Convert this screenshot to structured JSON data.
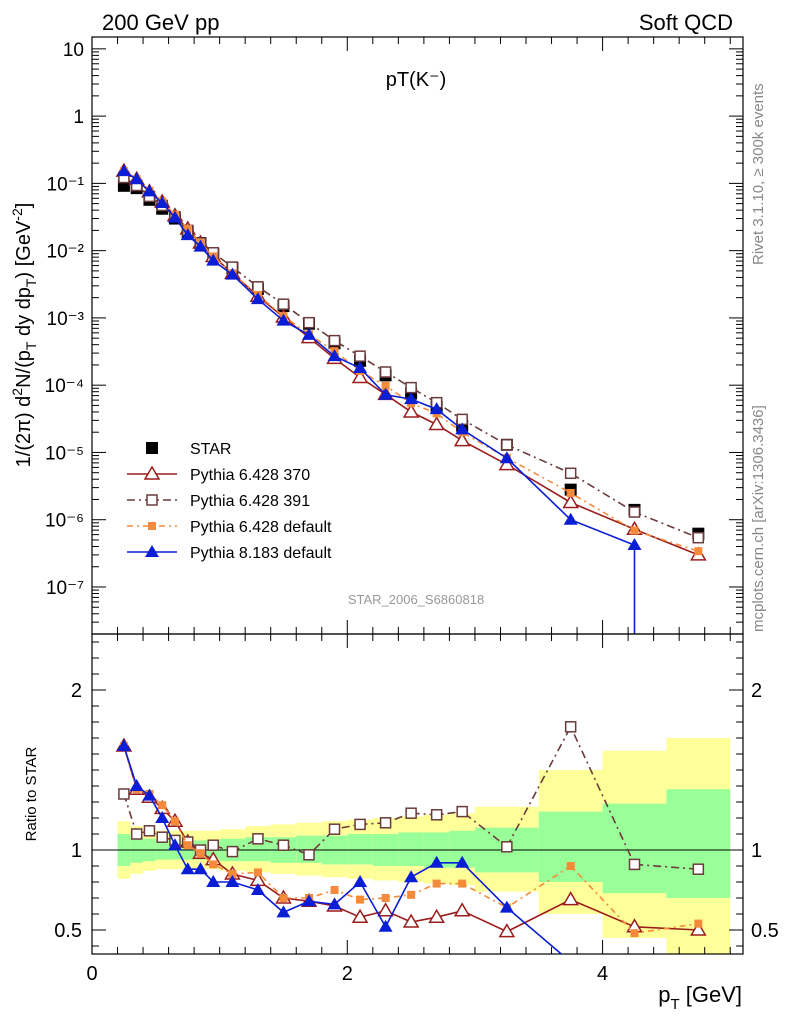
{
  "header": {
    "left": "200 GeV pp",
    "right": "Soft QCD"
  },
  "side_labels": {
    "rivet": "Rivet 3.1.10, ≥ 300k events",
    "site": "mcplots.cern.ch [arXiv:1306.3436]"
  },
  "watermark": "STAR_2006_S6860818",
  "colors": {
    "star": "#000000",
    "p370": "#9b1c1c",
    "p391": "#6b3a3a",
    "pdef": "#f58a3a",
    "p8": "#0a1ed6",
    "band_yellow": "#ffff99",
    "band_green": "#99ff99"
  },
  "chart_data": [
    {
      "type": "line",
      "title": "pT(K⁻)",
      "ylabel": "1/(2π) d²N/(p_T dy dp_T) [GeV⁻²]",
      "xlabel": "",
      "xlim": [
        0,
        5.1
      ],
      "ylim": [
        2e-08,
        15
      ],
      "yscale": "log",
      "y_ticks": [
        "10⁻⁷",
        "10⁻⁶",
        "10⁻⁵",
        "10⁻⁴",
        "10⁻³",
        "10⁻²",
        "10⁻¹",
        "1",
        "10"
      ],
      "legend": [
        "STAR",
        "Pythia 6.428 370",
        "Pythia 6.428 391",
        "Pythia 6.428 default",
        "Pythia 8.183 default"
      ],
      "x": [
        0.25,
        0.35,
        0.45,
        0.55,
        0.65,
        0.75,
        0.85,
        0.95,
        1.1,
        1.3,
        1.5,
        1.7,
        1.9,
        2.1,
        2.3,
        2.5,
        2.7,
        2.9,
        3.25,
        3.75,
        4.25,
        4.75
      ],
      "series": [
        {
          "name": "STAR",
          "values": [
            0.092,
            0.085,
            0.057,
            0.042,
            0.03,
            0.019,
            0.013,
            0.0088,
            0.0055,
            0.0027,
            0.0015,
            0.00082,
            0.00042,
            0.00023,
            0.00014,
            7.5e-05,
            4.8e-05,
            2.5e-05,
            1.3e-05,
            2.8e-06,
            1.4e-06,
            6.2e-07
          ]
        },
        {
          "name": "Pythia 6.428 370",
          "values": [
            0.152,
            0.115,
            0.075,
            0.053,
            0.033,
            0.021,
            0.013,
            0.0082,
            0.0046,
            0.0021,
            0.00103,
            0.00051,
            0.00025,
            0.00013,
            7.3e-05,
            4e-05,
            2.6e-05,
            1.5e-05,
            6.6e-06,
            1.8e-06,
            7.2e-07,
            3e-07
          ]
        },
        {
          "name": "Pythia 6.428 391",
          "values": [
            0.122,
            0.093,
            0.064,
            0.047,
            0.032,
            0.02,
            0.013,
            0.0093,
            0.0057,
            0.0029,
            0.0016,
            0.00085,
            0.00046,
            0.00027,
            0.000157,
            9.2e-05,
            5.5e-05,
            3.1e-05,
            1.3e-05,
            4.9e-06,
            1.3e-06,
            5.4e-07
          ]
        },
        {
          "name": "Pythia 6.428 default",
          "values": [
            0.152,
            0.115,
            0.078,
            0.054,
            0.034,
            0.021,
            0.013,
            0.0082,
            0.0046,
            0.0022,
            0.00106,
            0.00057,
            0.00032,
            0.000163,
            9.8e-05,
            5.4e-05,
            3.8e-05,
            2e-05,
            8.3e-06,
            2.5e-06,
            6.9e-07,
            3.4e-07
          ]
        },
        {
          "name": "Pythia 8.183 default",
          "values": [
            0.152,
            0.115,
            0.076,
            0.051,
            0.031,
            0.017,
            0.0115,
            0.0071,
            0.0044,
            0.0019,
            0.00091,
            0.00056,
            0.00027,
            0.00018,
            7.2e-05,
            6.2e-05,
            4.4e-05,
            2.2e-05,
            8.2e-06,
            1e-06,
            4.2e-07,
            null
          ]
        }
      ]
    },
    {
      "type": "line",
      "title": "",
      "ylabel": "Ratio to STAR",
      "xlabel": "p_T [GeV]",
      "xlim": [
        0,
        5.1
      ],
      "ylim": [
        0.35,
        2.35
      ],
      "x_ticks": [
        "0",
        "2",
        "4"
      ],
      "y_ticks": [
        "0.5",
        "1",
        "2"
      ],
      "x": [
        0.25,
        0.35,
        0.45,
        0.55,
        0.65,
        0.75,
        0.85,
        0.95,
        1.1,
        1.3,
        1.5,
        1.7,
        1.9,
        2.1,
        2.3,
        2.5,
        2.7,
        2.9,
        3.25,
        3.75,
        4.25,
        4.75
      ],
      "series": [
        {
          "name": "Pythia 6.428 370",
          "values": [
            1.65,
            1.38,
            1.33,
            1.26,
            1.18,
            1.05,
            0.98,
            0.94,
            0.85,
            0.81,
            0.7,
            0.68,
            0.65,
            0.58,
            0.62,
            0.55,
            0.58,
            0.62,
            0.49,
            0.69,
            0.52,
            0.5
          ]
        },
        {
          "name": "Pythia 6.428 391",
          "values": [
            1.35,
            1.1,
            1.12,
            1.08,
            1.06,
            1.05,
            1.0,
            1.03,
            0.99,
            1.07,
            1.03,
            0.97,
            1.13,
            1.16,
            1.17,
            1.23,
            1.22,
            1.24,
            1.02,
            1.77,
            0.91,
            0.88
          ]
        },
        {
          "name": "Pythia 6.428 default",
          "values": [
            1.65,
            1.38,
            1.35,
            1.28,
            1.18,
            1.03,
            0.98,
            0.91,
            0.85,
            0.86,
            0.7,
            0.7,
            0.75,
            0.69,
            0.7,
            0.72,
            0.79,
            0.79,
            0.64,
            0.9,
            0.48,
            0.54
          ]
        },
        {
          "name": "Pythia 8.183 default",
          "values": [
            1.65,
            1.4,
            1.34,
            1.2,
            1.03,
            0.88,
            0.88,
            0.8,
            0.8,
            0.75,
            0.61,
            0.68,
            0.66,
            0.8,
            0.52,
            0.83,
            0.92,
            0.92,
            0.64,
            0.3,
            null,
            null
          ]
        }
      ],
      "bands": [
        {
          "x0": 0.2,
          "x1": 0.3,
          "y": [
            0.82,
            1.18
          ],
          "g": [
            0.9,
            1.1
          ]
        },
        {
          "x0": 0.3,
          "x1": 0.4,
          "y": [
            0.85,
            1.15
          ],
          "g": [
            0.92,
            1.08
          ]
        },
        {
          "x0": 0.4,
          "x1": 0.5,
          "y": [
            0.87,
            1.13
          ],
          "g": [
            0.93,
            1.07
          ]
        },
        {
          "x0": 0.5,
          "x1": 0.6,
          "y": [
            0.88,
            1.12
          ],
          "g": [
            0.94,
            1.06
          ]
        },
        {
          "x0": 0.6,
          "x1": 0.7,
          "y": [
            0.88,
            1.12
          ],
          "g": [
            0.94,
            1.06
          ]
        },
        {
          "x0": 0.7,
          "x1": 0.8,
          "y": [
            0.88,
            1.12
          ],
          "g": [
            0.94,
            1.06
          ]
        },
        {
          "x0": 0.8,
          "x1": 0.9,
          "y": [
            0.88,
            1.12
          ],
          "g": [
            0.94,
            1.06
          ]
        },
        {
          "x0": 0.9,
          "x1": 1.0,
          "y": [
            0.88,
            1.12
          ],
          "g": [
            0.94,
            1.06
          ]
        },
        {
          "x0": 1.0,
          "x1": 1.2,
          "y": [
            0.87,
            1.13
          ],
          "g": [
            0.93,
            1.07
          ]
        },
        {
          "x0": 1.2,
          "x1": 1.4,
          "y": [
            0.86,
            1.15
          ],
          "g": [
            0.93,
            1.08
          ]
        },
        {
          "x0": 1.4,
          "x1": 1.6,
          "y": [
            0.85,
            1.16
          ],
          "g": [
            0.92,
            1.08
          ]
        },
        {
          "x0": 1.6,
          "x1": 1.8,
          "y": [
            0.84,
            1.17
          ],
          "g": [
            0.92,
            1.09
          ]
        },
        {
          "x0": 1.8,
          "x1": 2.0,
          "y": [
            0.83,
            1.18
          ],
          "g": [
            0.91,
            1.09
          ]
        },
        {
          "x0": 2.0,
          "x1": 2.2,
          "y": [
            0.82,
            1.19
          ],
          "g": [
            0.91,
            1.1
          ]
        },
        {
          "x0": 2.2,
          "x1": 2.4,
          "y": [
            0.81,
            1.2
          ],
          "g": [
            0.9,
            1.1
          ]
        },
        {
          "x0": 2.4,
          "x1": 2.6,
          "y": [
            0.8,
            1.21
          ],
          "g": [
            0.9,
            1.11
          ]
        },
        {
          "x0": 2.6,
          "x1": 2.8,
          "y": [
            0.79,
            1.22
          ],
          "g": [
            0.89,
            1.11
          ]
        },
        {
          "x0": 2.8,
          "x1": 3.0,
          "y": [
            0.78,
            1.23
          ],
          "g": [
            0.89,
            1.12
          ]
        },
        {
          "x0": 3.0,
          "x1": 3.5,
          "y": [
            0.74,
            1.27
          ],
          "g": [
            0.86,
            1.14
          ]
        },
        {
          "x0": 3.5,
          "x1": 4.0,
          "y": [
            0.6,
            1.5
          ],
          "g": [
            0.8,
            1.24
          ]
        },
        {
          "x0": 4.0,
          "x1": 4.5,
          "y": [
            0.45,
            1.62
          ],
          "g": [
            0.73,
            1.29
          ]
        },
        {
          "x0": 4.5,
          "x1": 5.0,
          "y": [
            0.35,
            1.7
          ],
          "g": [
            0.7,
            1.38
          ]
        }
      ]
    }
  ]
}
